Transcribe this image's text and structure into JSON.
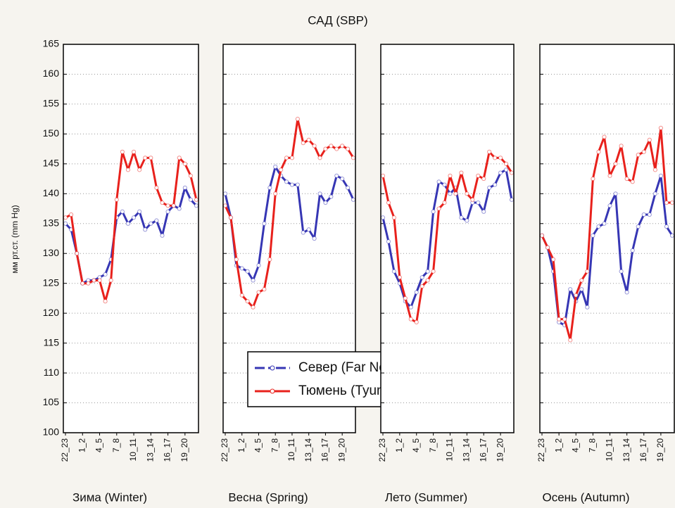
{
  "chart_data": [
    {
      "type": "line",
      "title": "САД (SBP)",
      "y_label": "мм рт.ст. (mm Hg)",
      "x_label": "Зима (Winter)",
      "categories": [
        "22_23",
        null,
        null,
        "1_2",
        null,
        null,
        "4_5",
        null,
        null,
        "7_8",
        null,
        null,
        "10_11",
        null,
        null,
        "13_14",
        null,
        null,
        "16_17",
        null,
        null,
        "19_20",
        null,
        null
      ],
      "ylim": [
        100,
        165
      ],
      "yticks": [
        100,
        105,
        110,
        115,
        120,
        125,
        130,
        135,
        140,
        145,
        150,
        155,
        160,
        165
      ],
      "grid": true,
      "series": [
        {
          "name": "Север (Far North)",
          "color": "#3636b4",
          "values": [
            135,
            134,
            130,
            125,
            125.5,
            125.5,
            126,
            126.5,
            129,
            136,
            137,
            135,
            136,
            137,
            134,
            135,
            135.5,
            133,
            137,
            138,
            137.5,
            141,
            139,
            138
          ]
        },
        {
          "name": "Тюмень (Tyumen)",
          "color": "#e8211c",
          "values": [
            136,
            136.5,
            130,
            125,
            125,
            125.5,
            125.5,
            122,
            125.5,
            139,
            147,
            144,
            147,
            144,
            146,
            146,
            141,
            138.5,
            138,
            138,
            146,
            145,
            143,
            139
          ]
        }
      ]
    },
    {
      "type": "line",
      "x_label": "Весна (Spring)",
      "categories": [
        "22_23",
        null,
        null,
        "1_2",
        null,
        null,
        "4_5",
        null,
        null,
        "7_8",
        null,
        null,
        "10_11",
        null,
        null,
        "13_14",
        null,
        null,
        "16_17",
        null,
        null,
        "19_20",
        null,
        null
      ],
      "ylim": [
        100,
        165
      ],
      "yticks": [
        100,
        105,
        110,
        115,
        120,
        125,
        130,
        135,
        140,
        145,
        150,
        155,
        160,
        165
      ],
      "grid": true,
      "legend": true,
      "series": [
        {
          "name": "Север (Far North)",
          "color": "#3636b4",
          "values": [
            140,
            136,
            128,
            127.5,
            127,
            125.5,
            128,
            135,
            141,
            144.5,
            143,
            142,
            141.5,
            141.5,
            133.5,
            134,
            132.5,
            140,
            138.5,
            139.5,
            143,
            142.5,
            141,
            139
          ]
        },
        {
          "name": "Тюмень (Tyumen)",
          "color": "#e8211c",
          "values": [
            138,
            136,
            129,
            123,
            122,
            121,
            123.5,
            124,
            129,
            140,
            144,
            146,
            146,
            152.5,
            148.5,
            149,
            148,
            146,
            147.5,
            148,
            147.5,
            148,
            147.5,
            146
          ]
        }
      ]
    },
    {
      "type": "line",
      "x_label": "Лето (Summer)",
      "categories": [
        "22_23",
        null,
        null,
        "1_2",
        null,
        null,
        "4_5",
        null,
        null,
        "7_8",
        null,
        null,
        "10_11",
        null,
        null,
        "13_14",
        null,
        null,
        "16_17",
        null,
        null,
        "19_20",
        null,
        null
      ],
      "ylim": [
        100,
        165
      ],
      "yticks": [
        100,
        105,
        110,
        115,
        120,
        125,
        130,
        135,
        140,
        145,
        150,
        155,
        160,
        165
      ],
      "grid": true,
      "series": [
        {
          "name": "Север (Far North)",
          "color": "#3636b4",
          "values": [
            136,
            132,
            127,
            125,
            122,
            121,
            123.5,
            126,
            127,
            137,
            142,
            141.5,
            140,
            141,
            136,
            135.5,
            138.5,
            138.5,
            137,
            141,
            141.5,
            143.5,
            144,
            139
          ]
        },
        {
          "name": "Тюмень (Tyumen)",
          "color": "#e8211c",
          "values": [
            143,
            138.5,
            136,
            126,
            122.5,
            119,
            118.5,
            124.5,
            125.5,
            127,
            137.5,
            138.5,
            143,
            140,
            143.5,
            140,
            139,
            143,
            142.5,
            147,
            146,
            146,
            145,
            143.5
          ]
        }
      ]
    },
    {
      "type": "line",
      "x_label": "Осень (Autumn)",
      "categories": [
        "22_23",
        null,
        null,
        "1_2",
        null,
        null,
        "4_5",
        null,
        null,
        "7_8",
        null,
        null,
        "10_11",
        null,
        null,
        "13_14",
        null,
        null,
        "16_17",
        null,
        null,
        "19_20",
        null,
        null
      ],
      "ylim": [
        100,
        165
      ],
      "yticks": [
        100,
        105,
        110,
        115,
        120,
        125,
        130,
        135,
        140,
        145,
        150,
        155,
        160,
        165
      ],
      "grid": true,
      "series": [
        {
          "name": "Север (Far North)",
          "color": "#3636b4",
          "values": [
            133,
            131,
            127,
            118.5,
            118,
            124,
            122,
            124,
            121,
            133,
            134.5,
            135,
            138,
            140,
            127,
            123.5,
            130.5,
            134.5,
            136.5,
            136.5,
            140,
            143,
            134.5,
            133
          ]
        },
        {
          "name": "Тюмень (Tyumen)",
          "color": "#e8211c",
          "values": [
            133,
            131,
            129,
            119,
            119,
            115.5,
            123,
            125.5,
            127,
            142.5,
            147,
            149.5,
            143,
            145,
            148,
            142.5,
            142,
            146.5,
            147,
            149,
            144,
            151,
            138.5,
            138.5
          ]
        }
      ]
    }
  ]
}
